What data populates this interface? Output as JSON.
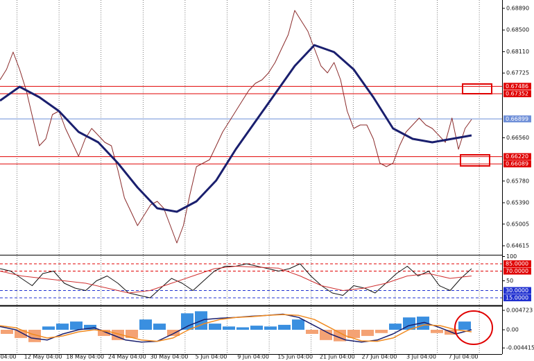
{
  "chart_data": [
    {
      "type": "line",
      "ylim": [
        0.64465,
        0.6904
      ],
      "yticks": [
        {
          "value": 0.6889,
          "label": "0.68890"
        },
        {
          "value": 0.685,
          "label": "0.68500"
        },
        {
          "value": 0.6811,
          "label": "0.68110"
        },
        {
          "value": 0.67725,
          "label": "0.67725"
        },
        {
          "value": 0.6656,
          "label": "0.66560"
        },
        {
          "value": 0.6578,
          "label": "0.65780"
        },
        {
          "value": 0.6539,
          "label": "0.65390"
        },
        {
          "value": 0.65005,
          "label": "0.65005"
        },
        {
          "value": 0.64615,
          "label": "0.64615"
        }
      ],
      "levels": [
        {
          "value": 0.67486,
          "label": "0.67486",
          "color": "#e00000"
        },
        {
          "value": 0.67352,
          "label": "0.67352",
          "color": "#e00000"
        },
        {
          "value": 0.6622,
          "label": "0.66220",
          "color": "#e00000"
        },
        {
          "value": 0.66089,
          "label": "0.66089",
          "color": "#e00000"
        },
        {
          "value": 0.66899,
          "label": "0.66899",
          "color": "#6f8fd8"
        }
      ],
      "series": [
        {
          "color": "#8a2a2a",
          "width": 1,
          "values": [
            0.67603,
            0.6779,
            0.68103,
            0.6779,
            0.67415,
            0.66915,
            0.66415,
            0.6654,
            0.66978,
            0.6704,
            0.66728,
            0.66478,
            0.66228,
            0.6654,
            0.66728,
            0.66603,
            0.66478,
            0.66415,
            0.65978,
            0.65478,
            0.65228,
            0.64978,
            0.65165,
            0.65353,
            0.65415,
            0.6529,
            0.64978,
            0.64665,
            0.64978,
            0.6554,
            0.6604,
            0.66103,
            0.66165,
            0.66415,
            0.66665,
            0.66853,
            0.6704,
            0.67228,
            0.67415,
            0.6754,
            0.67603,
            0.67728,
            0.67915,
            0.68165,
            0.68415,
            0.68853,
            0.68665,
            0.68478,
            0.68165,
            0.67853,
            0.67728,
            0.67915,
            0.67603,
            0.6704,
            0.66728,
            0.6679,
            0.6679,
            0.6654,
            0.66103,
            0.6604,
            0.66103,
            0.66415,
            0.66665,
            0.6679,
            0.66915,
            0.6679,
            0.66728,
            0.66603,
            0.66478,
            0.66915,
            0.66353,
            0.66728,
            0.6689
          ]
        },
        {
          "color": "#1a1f6e",
          "width": 3,
          "values": [
            0.67228,
            0.67478,
            0.6729,
            0.6704,
            0.66665,
            0.66478,
            0.66103,
            0.65665,
            0.6529,
            0.65228,
            0.65415,
            0.6579,
            0.66353,
            0.66853,
            0.67353,
            0.67853,
            0.68228,
            0.68103,
            0.6779,
            0.6729,
            0.66728,
            0.6654,
            0.66478,
            0.6654,
            0.66603
          ]
        }
      ]
    },
    {
      "type": "line",
      "ylim": [
        0,
        100
      ],
      "yticks": [
        100,
        50
      ],
      "levels": [
        {
          "value": 85,
          "label": "85.0000",
          "color": "#e00000"
        },
        {
          "value": 70,
          "label": "70.0000",
          "color": "#e00000"
        },
        {
          "value": 30,
          "label": "30.0000",
          "color": "#2030d0"
        },
        {
          "value": 15,
          "label": "15.0000",
          "color": "#2030d0"
        }
      ],
      "series": [
        {
          "color": "#111111",
          "width": 1,
          "values": [
            75,
            70,
            55,
            40,
            65,
            70,
            45,
            35,
            30,
            50,
            60,
            45,
            25,
            20,
            15,
            35,
            55,
            45,
            30,
            50,
            70,
            80,
            80,
            85,
            80,
            75,
            70,
            75,
            85,
            60,
            40,
            25,
            20,
            40,
            35,
            25,
            45,
            65,
            80,
            60,
            70,
            40,
            30,
            55,
            75
          ]
        },
        {
          "color": "#d03030",
          "width": 1,
          "values": [
            70,
            60,
            55,
            50,
            45,
            35,
            25,
            30,
            45,
            60,
            75,
            80,
            78,
            76,
            60,
            40,
            30,
            35,
            45,
            60,
            65,
            55,
            60
          ]
        }
      ]
    },
    {
      "type": "macd",
      "ylim": [
        -0.0059,
        0.00557
      ],
      "yticks": [
        0.004723,
        {
          "value": 0,
          "label": "0.00"
        },
        -0.004415
      ],
      "histogram": [
        -0.001,
        -0.002,
        -0.003,
        0.0008,
        0.0015,
        0.002,
        0.0012,
        -0.0015,
        -0.0025,
        -0.002,
        0.0025,
        0.0015,
        -0.0015,
        0.004,
        0.0045,
        0.0015,
        0.0008,
        0.0006,
        0.001,
        0.0008,
        0.0012,
        0.0025,
        -0.001,
        -0.0025,
        -0.0028,
        -0.002,
        -0.0015,
        -0.0008,
        0.0015,
        0.003,
        0.0032,
        -0.0008,
        -0.0012,
        0.002
      ],
      "up_color": "#3a8fe0",
      "down_color": "#f4a274",
      "series": [
        {
          "color": "#1a1f6e",
          "width": 1.5,
          "values": [
            0.0008,
            0,
            -0.002,
            -0.0025,
            -0.001,
            0,
            0.0005,
            -0.001,
            -0.0025,
            -0.003,
            -0.0028,
            -0.001,
            0.001,
            0.0025,
            0.0028,
            0.003,
            0.0033,
            0.0035,
            0.0038,
            0.003,
            0.001,
            -0.001,
            -0.0025,
            -0.003,
            -0.0025,
            -0.001,
            0.001,
            0.0018,
            0.0005,
            -0.001,
            0
          ]
        },
        {
          "color": "#f08a20",
          "width": 1.5,
          "values": [
            0.001,
            0.0005,
            -0.001,
            -0.002,
            -0.0015,
            -0.0005,
            0,
            -0.0005,
            -0.0015,
            -0.0025,
            -0.0028,
            -0.002,
            0,
            0.0015,
            0.0025,
            0.003,
            0.0032,
            0.0035,
            0.0037,
            0.0035,
            0.0025,
            0.0005,
            -0.0015,
            -0.0027,
            -0.0028,
            -0.002,
            0,
            0.0012,
            0.001,
            0,
            -0.0005
          ]
        }
      ],
      "x_labels": [
        "04:00",
        "12 May 04:00",
        "18 May 04:00",
        "24 May 04:00",
        "30 May 04:00",
        "5 Jun 04:00",
        "9 Jun 04:00",
        "15 Jun 04:00",
        "21 Jun 04:00",
        "27 Jun 04:00",
        "3 Jul 04:00",
        "7 Jul 04:00"
      ]
    }
  ]
}
